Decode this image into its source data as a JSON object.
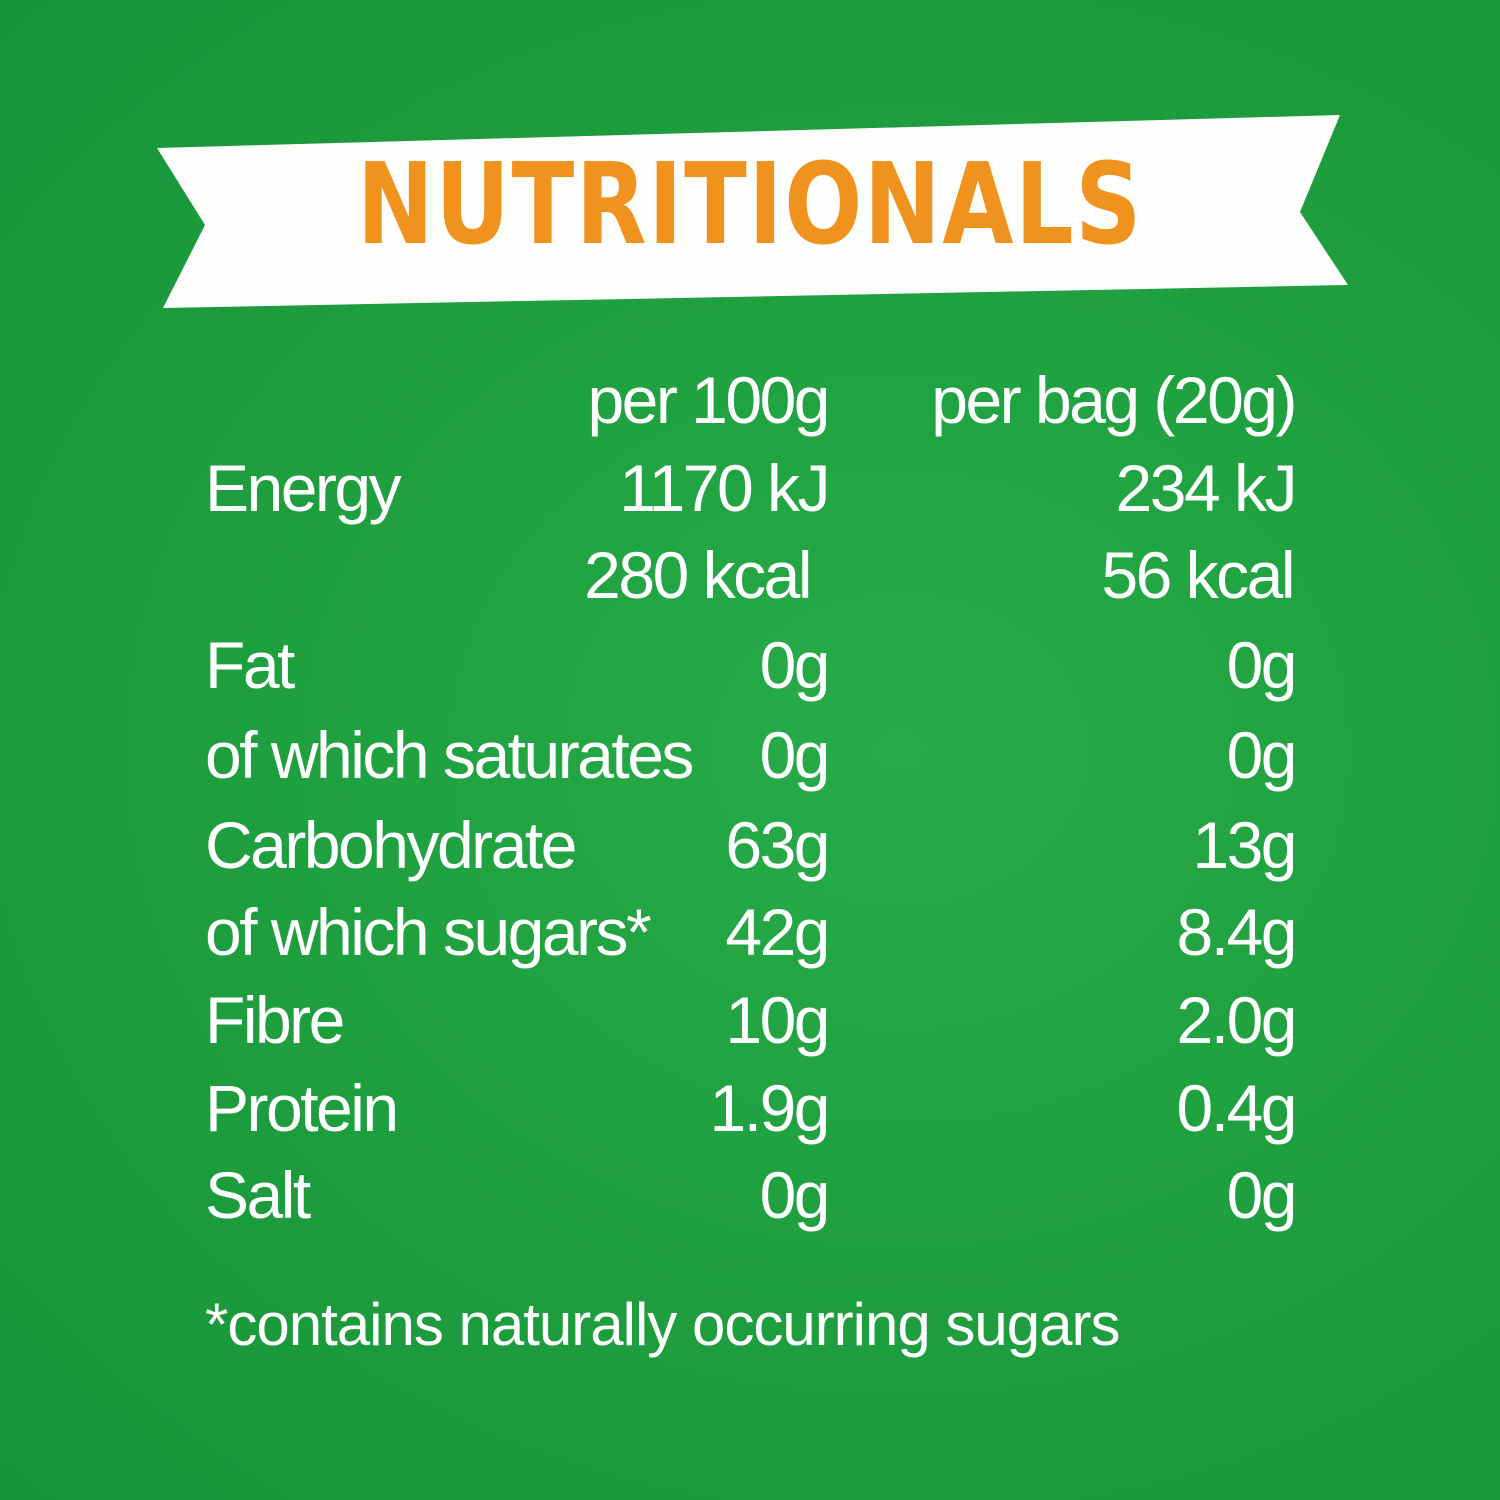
{
  "title": "NUTRITIONALS",
  "colors": {
    "background": "#1e9e3e",
    "banner": "#ffffff",
    "title": "#f0921e",
    "text": "#ffffff"
  },
  "table": {
    "headers": {
      "per_100g": "per 100g",
      "per_bag": "per bag (20g)"
    },
    "rows": [
      {
        "label": "Energy",
        "per_100g": "1170 kJ",
        "per_bag": "234 kJ"
      },
      {
        "label": "",
        "per_100g": "280 kcal",
        "per_bag": "56 kcal"
      },
      {
        "label": "Fat",
        "per_100g": "0g",
        "per_bag": "0g"
      },
      {
        "label": "of which saturates",
        "per_100g": "0g",
        "per_bag": "0g"
      },
      {
        "label": "Carbohydrate",
        "per_100g": "63g",
        "per_bag": "13g"
      },
      {
        "label": "of which sugars*",
        "per_100g": "42g",
        "per_bag": "8.4g"
      },
      {
        "label": "Fibre",
        "per_100g": "10g",
        "per_bag": "2.0g"
      },
      {
        "label": "Protein",
        "per_100g": "1.9g",
        "per_bag": "0.4g"
      },
      {
        "label": "Salt",
        "per_100g": "0g",
        "per_bag": "0g"
      }
    ]
  },
  "footnote": "*contains naturally occurring sugars"
}
